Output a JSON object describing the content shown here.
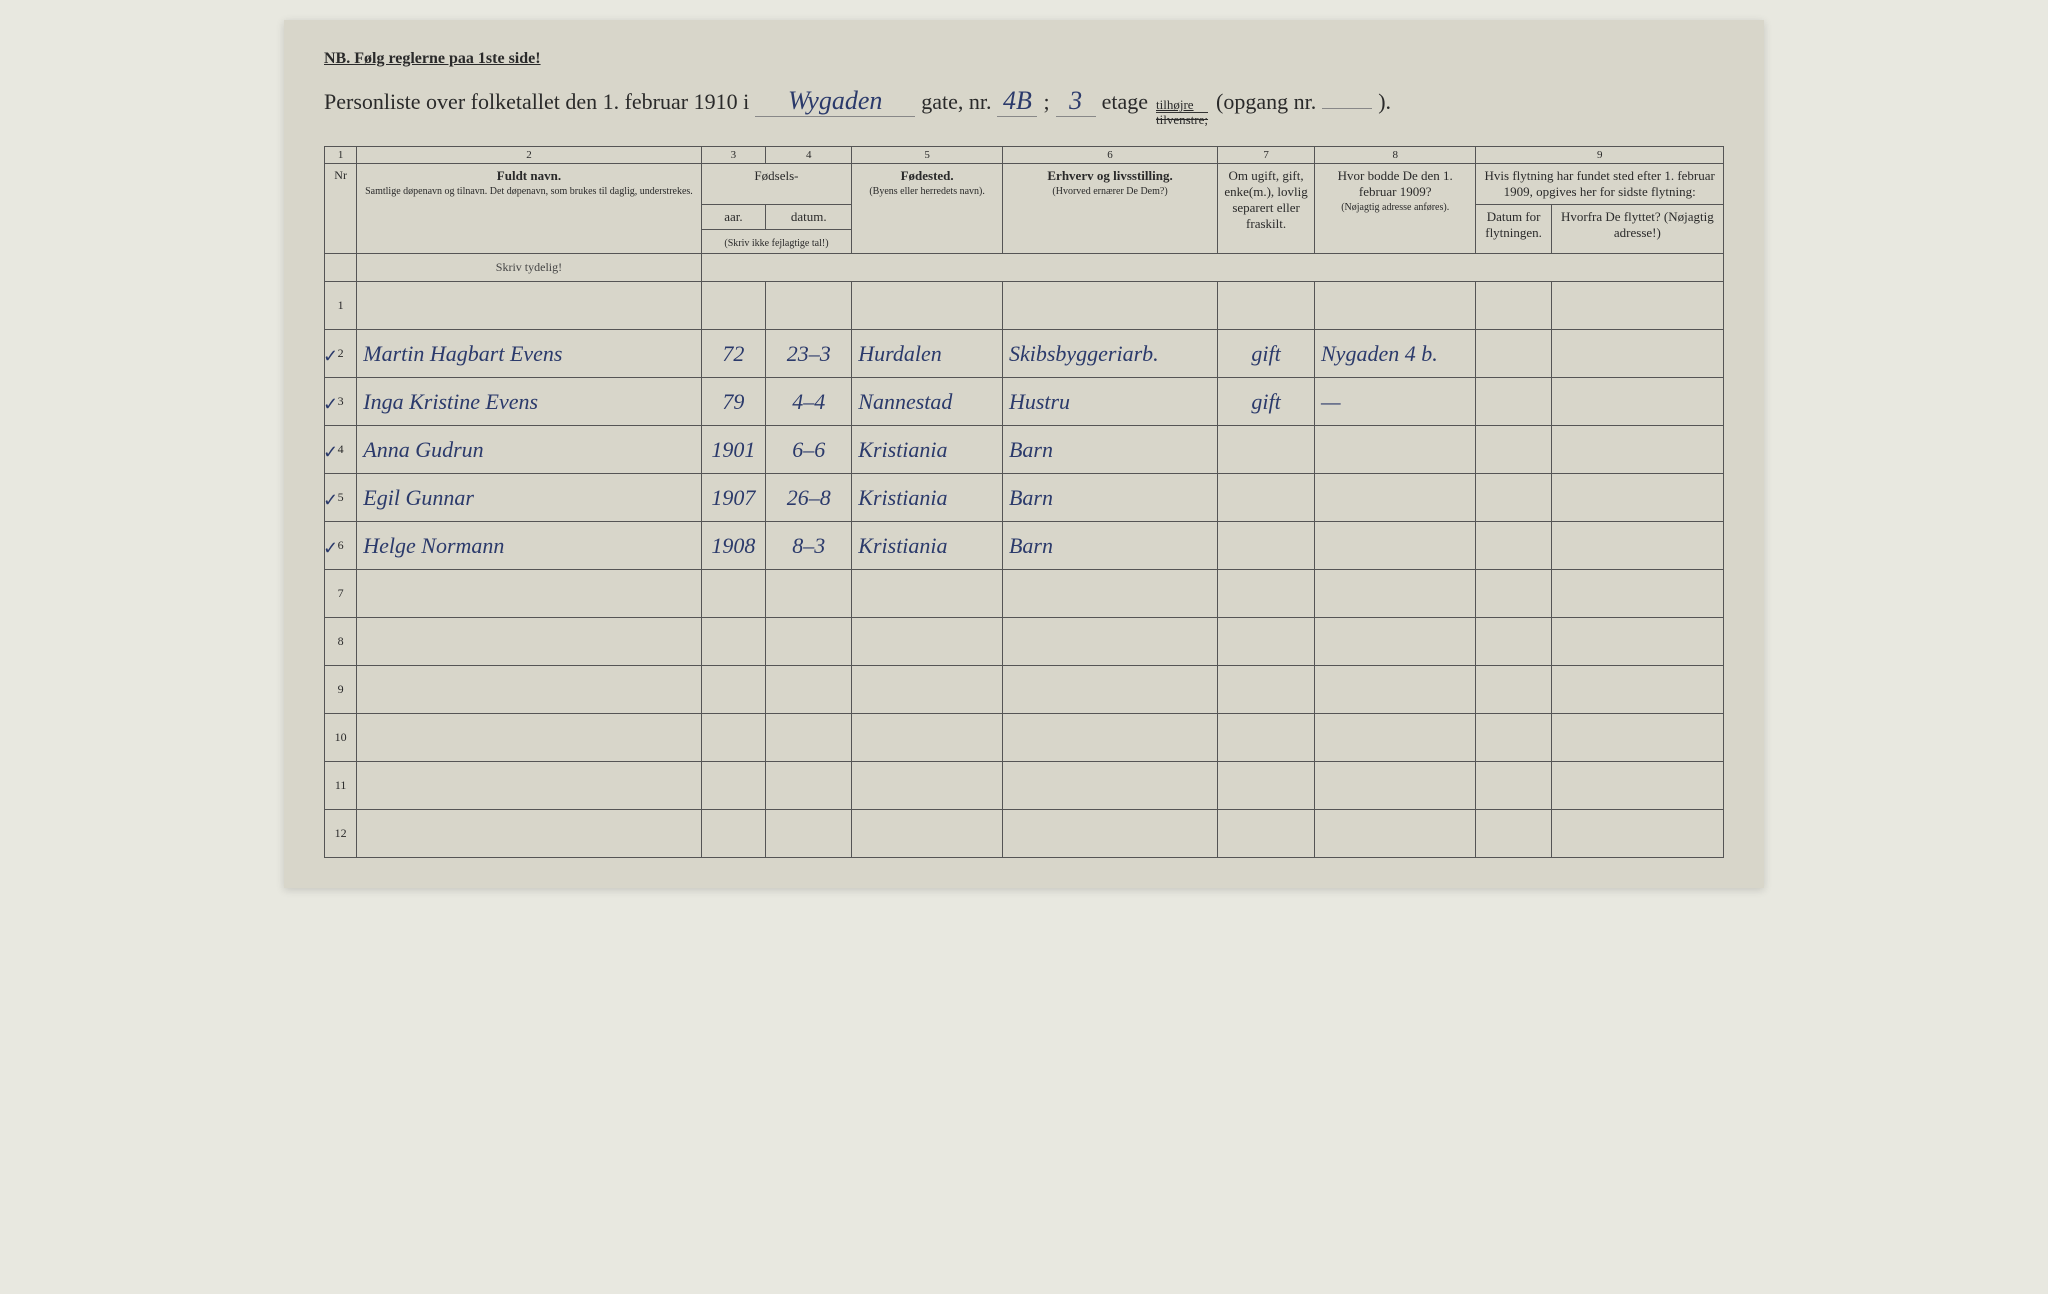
{
  "header": {
    "note": "NB.  Følg reglerne paa 1ste side!",
    "title_prefix": "Personliste over folketallet den 1. februar 1910 i",
    "street_name": "Wygaden",
    "gate_label": "gate, nr.",
    "house_nr": "4B",
    "separator1": ";",
    "floor_nr": "3",
    "etage_label": "etage",
    "side_top": "tilhøjre",
    "side_bottom": "tilvenstre;",
    "opgang_label": "(opgang nr.",
    "opgang_nr": "",
    "closing": ")."
  },
  "columns": {
    "numbers": [
      "1",
      "2",
      "3",
      "4",
      "5",
      "6",
      "7",
      "8",
      "9"
    ],
    "nr": "Nr",
    "name_label": "Fuldt navn.",
    "name_sub": "Samtlige døpenavn og tilnavn. Det døpenavn, som brukes til daglig, understrekes.",
    "birth_header": "Fødsels-",
    "year": "aar.",
    "date": "datum.",
    "year_note": "(Skriv ikke fejlagtige tal!)",
    "birthplace": "Fødested.",
    "birthplace_sub": "(Byens eller herredets navn).",
    "occupation": "Erhverv og livsstilling.",
    "occupation_sub": "(Hvorved ernærer De Dem?)",
    "marital": "Om ugift, gift, enke(m.), lovlig separert eller fraskilt.",
    "address_1909": "Hvor bodde De den 1. februar 1909?",
    "address_sub": "(Nøjagtig adresse anføres).",
    "move_header": "Hvis flytning har fundet sted efter 1. februar 1909, opgives her for sidste flytning:",
    "move_date": "Datum for flytningen.",
    "move_from": "Hvorfra De flyttet? (Nøjagtig adresse!)",
    "skriv_tydelig": "Skriv tydelig!"
  },
  "rows": [
    {
      "nr": "1",
      "check": false,
      "name": "",
      "year": "",
      "date": "",
      "place": "",
      "occupation": "",
      "marital": "",
      "address": "",
      "movedate": "",
      "movefrom": ""
    },
    {
      "nr": "2",
      "check": true,
      "name": "Martin Hagbart Evens",
      "year": "72",
      "date": "23–3",
      "place": "Hurdalen",
      "occupation": "Skibsbyggeriarb.",
      "marital": "gift",
      "address": "Nygaden 4 b.",
      "movedate": "",
      "movefrom": ""
    },
    {
      "nr": "3",
      "check": true,
      "name": "Inga Kristine Evens",
      "year": "79",
      "date": "4–4",
      "place": "Nannestad",
      "occupation": "Hustru",
      "marital": "gift",
      "address": "—",
      "movedate": "",
      "movefrom": ""
    },
    {
      "nr": "4",
      "check": true,
      "name": "Anna Gudrun",
      "year": "1901",
      "date": "6–6",
      "place": "Kristiania",
      "occupation": "Barn",
      "marital": "",
      "address": "",
      "movedate": "",
      "movefrom": ""
    },
    {
      "nr": "5",
      "check": true,
      "name": "Egil Gunnar",
      "year": "1907",
      "date": "26–8",
      "place": "Kristiania",
      "occupation": "Barn",
      "marital": "",
      "address": "",
      "movedate": "",
      "movefrom": ""
    },
    {
      "nr": "6",
      "check": true,
      "name": "Helge Normann",
      "year": "1908",
      "date": "8–3",
      "place": "Kristiania",
      "occupation": "Barn",
      "marital": "",
      "address": "",
      "movedate": "",
      "movefrom": ""
    },
    {
      "nr": "7",
      "check": false,
      "name": "",
      "year": "",
      "date": "",
      "place": "",
      "occupation": "",
      "marital": "",
      "address": "",
      "movedate": "",
      "movefrom": ""
    },
    {
      "nr": "8",
      "check": false,
      "name": "",
      "year": "",
      "date": "",
      "place": "",
      "occupation": "",
      "marital": "",
      "address": "",
      "movedate": "",
      "movefrom": ""
    },
    {
      "nr": "9",
      "check": false,
      "name": "",
      "year": "",
      "date": "",
      "place": "",
      "occupation": "",
      "marital": "",
      "address": "",
      "movedate": "",
      "movefrom": ""
    },
    {
      "nr": "10",
      "check": false,
      "name": "",
      "year": "",
      "date": "",
      "place": "",
      "occupation": "",
      "marital": "",
      "address": "",
      "movedate": "",
      "movefrom": ""
    },
    {
      "nr": "11",
      "check": false,
      "name": "",
      "year": "",
      "date": "",
      "place": "",
      "occupation": "",
      "marital": "",
      "address": "",
      "movedate": "",
      "movefrom": ""
    },
    {
      "nr": "12",
      "check": false,
      "name": "",
      "year": "",
      "date": "",
      "place": "",
      "occupation": "",
      "marital": "",
      "address": "",
      "movedate": "",
      "movefrom": ""
    }
  ],
  "styling": {
    "paper_bg": "#d8d6ca",
    "ink_color": "#2b3a6b",
    "print_color": "#2a2a2a",
    "border_color": "#555555",
    "handwritten_font": "Brush Script MT"
  }
}
